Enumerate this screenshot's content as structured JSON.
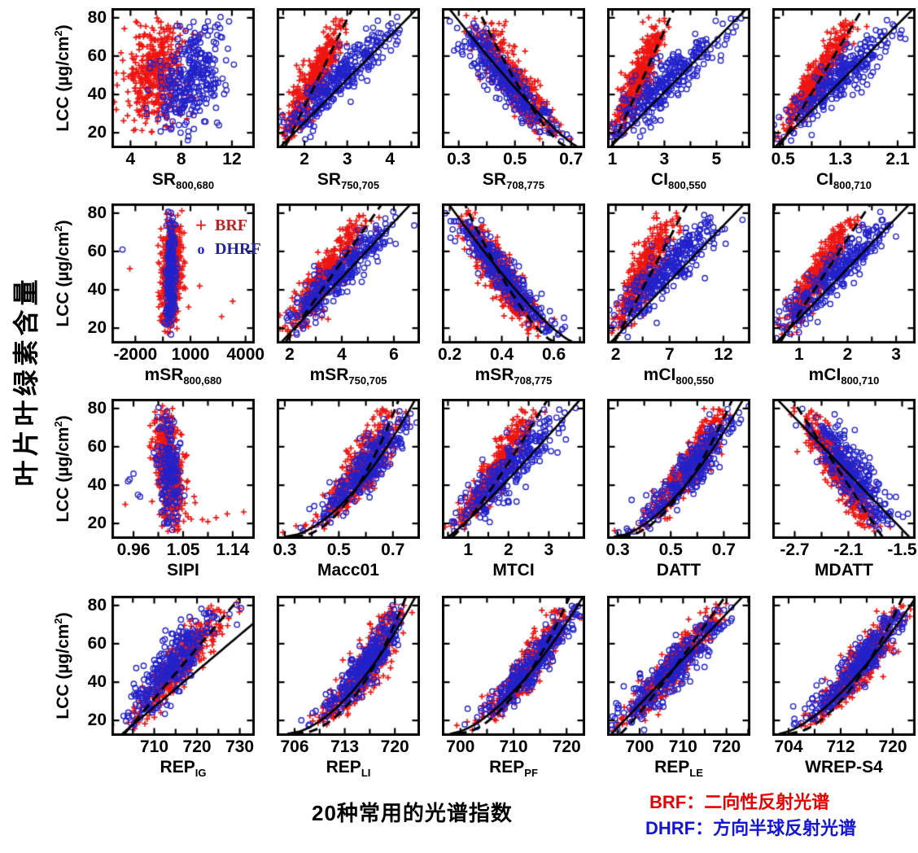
{
  "figure": {
    "left_axis_title": "叶片叶绿素含量",
    "bottom_caption": "20种常用的光谱指数",
    "footer_legend": [
      {
        "label": "BRF：",
        "text": "二向性反射光谱",
        "color": "#e60000"
      },
      {
        "label": "DHRF：",
        "text": "方向半球反射光谱",
        "color": "#1414d4"
      }
    ]
  },
  "chart_data": {
    "type": "scatter",
    "grid": {
      "rows": 4,
      "cols": 5
    },
    "ylabel": {
      "pre": "LCC (µg/cm",
      "sup": "2",
      "post": ")"
    },
    "yticks": [
      20,
      40,
      60,
      80
    ],
    "ylim": [
      12,
      85
    ],
    "series_styles": {
      "brf": {
        "name": "BRF",
        "marker": "+",
        "color": "#ee1511"
      },
      "dhrf": {
        "name": "DHRF",
        "marker": "o",
        "color": "#2222cc"
      }
    },
    "fit_styles": {
      "dashed_series": "BRF",
      "solid_series": "DHRF",
      "color": "#000000"
    },
    "inplot_legend": {
      "panel_index": 5,
      "entries": [
        {
          "marker": "+",
          "label": "BRF",
          "marker_color": "#ee1511",
          "label_color": "#bb2222"
        },
        {
          "marker": "o",
          "label": "DHRF",
          "marker_color": "#2222cc",
          "label_color": "#222299"
        }
      ]
    },
    "panels": [
      {
        "xlabel": {
          "base": "SR",
          "sub": "800,680"
        },
        "xlim": [
          2.5,
          13.8
        ],
        "xticks": [
          4,
          8,
          12
        ],
        "brf": {
          "x0": 5.7,
          "x1": 6.4,
          "p": 1,
          "s": 1.15,
          "n": 460,
          "ymin": 19
        },
        "dhrf": {
          "x0": 7.5,
          "x1": 9.8,
          "p": 1,
          "s": 1.3,
          "n": 300
        },
        "fits": []
      },
      {
        "xlabel": {
          "base": "SR",
          "sub": "750,705"
        },
        "xlim": [
          1.35,
          4.7
        ],
        "xticks": [
          2,
          3,
          4
        ],
        "brf": {
          "x0": 1.55,
          "x1": 2.95,
          "p": 1.05,
          "s": 0.16,
          "n": 440
        },
        "dhrf": {
          "x0": 1.5,
          "x1": 4.35,
          "p": 1.1,
          "s": 0.24,
          "n": 300
        },
        "fits": [
          {
            "style": "dashed",
            "x0": 1.55,
            "x1": 3.1,
            "p": 1
          },
          {
            "style": "solid",
            "x0": 1.45,
            "x1": 4.6,
            "p": 1
          }
        ]
      },
      {
        "xlabel": {
          "base": "SR",
          "sub": "708,775"
        },
        "xlim": [
          0.24,
          0.75
        ],
        "xticks": [
          0.3,
          0.5,
          0.7
        ],
        "brf": {
          "x0": 0.66,
          "x1": 0.37,
          "p": 0.8,
          "s": 0.035,
          "n": 440
        },
        "dhrf": {
          "x0": 0.68,
          "x1": 0.29,
          "p": 0.85,
          "s": 0.035,
          "n": 300
        },
        "fits": [
          {
            "style": "dashed",
            "x0": 0.68,
            "x1": 0.37,
            "p": 0.75
          },
          {
            "style": "solid",
            "x0": 0.72,
            "x1": 0.27,
            "p": 0.85
          }
        ]
      },
      {
        "xlabel": {
          "base": "CI",
          "sub": "800,550"
        },
        "xlim": [
          0.8,
          6.3
        ],
        "xticks": [
          1,
          3,
          5
        ],
        "brf": {
          "x0": 1.05,
          "x1": 3.0,
          "p": 1,
          "s": 0.24,
          "n": 440
        },
        "dhrf": {
          "x0": 1.0,
          "x1": 5.6,
          "p": 1.1,
          "s": 0.5,
          "n": 300
        },
        "fits": [
          {
            "style": "dashed",
            "x0": 1.0,
            "x1": 3.35,
            "p": 1
          },
          {
            "style": "solid",
            "x0": 0.95,
            "x1": 6.1,
            "p": 1
          }
        ]
      },
      {
        "xlabel": {
          "base": "CI",
          "sub": "800,710"
        },
        "xlim": [
          0.35,
          2.35
        ],
        "xticks": [
          0.5,
          1.3,
          2.1
        ],
        "brf": {
          "x0": 0.45,
          "x1": 1.5,
          "p": 1,
          "s": 0.09,
          "n": 440
        },
        "dhrf": {
          "x0": 0.43,
          "x1": 2.2,
          "p": 1.05,
          "s": 0.17,
          "n": 300
        },
        "fits": [
          {
            "style": "dashed",
            "x0": 0.45,
            "x1": 1.6,
            "p": 1
          },
          {
            "style": "solid",
            "x0": 0.4,
            "x1": 2.3,
            "p": 1
          }
        ]
      },
      {
        "xlabel": {
          "base": "mSR",
          "sub": "800,680"
        },
        "xlim": [
          -3300,
          4500
        ],
        "xticks": [
          -2000,
          1000,
          4000
        ],
        "brf": {
          "x0": -200,
          "x1": 100,
          "p": 1,
          "s": 260,
          "n": 520
        },
        "dhrf": {
          "x0": -150,
          "x1": 0,
          "p": 1,
          "s": 130,
          "n": 200
        },
        "out_brf": [
          [
            -2300,
            51
          ],
          [
            1500,
            42
          ],
          [
            3300,
            34
          ],
          [
            2700,
            26
          ],
          [
            900,
            31
          ],
          [
            700,
            54
          ]
        ],
        "out_dhrf": [
          [
            -2700,
            61
          ]
        ],
        "fits": []
      },
      {
        "xlabel": {
          "base": "mSR",
          "sub": "750,705"
        },
        "xlim": [
          1.5,
          7.0
        ],
        "xticks": [
          2,
          4,
          6
        ],
        "brf": {
          "x0": 1.85,
          "x1": 5.0,
          "p": 1,
          "s": 0.3,
          "n": 440
        },
        "dhrf": {
          "x0": 1.75,
          "x1": 6.3,
          "p": 1.05,
          "s": 0.42,
          "n": 300
        },
        "fits": [
          {
            "style": "dashed",
            "x0": 1.85,
            "x1": 5.5,
            "p": 1
          },
          {
            "style": "solid",
            "x0": 1.7,
            "x1": 6.6,
            "p": 1
          }
        ]
      },
      {
        "xlabel": {
          "base": "mSR",
          "sub": "708,775"
        },
        "xlim": [
          0.17,
          0.72
        ],
        "xticks": [
          0.2,
          0.4,
          0.6
        ],
        "brf": {
          "x0": 0.58,
          "x1": 0.26,
          "p": 0.78,
          "s": 0.035,
          "n": 440
        },
        "dhrf": {
          "x0": 0.64,
          "x1": 0.22,
          "p": 0.82,
          "s": 0.03,
          "n": 300
        },
        "fits": [
          {
            "style": "dashed",
            "x0": 0.6,
            "x1": 0.26,
            "p": 0.72
          },
          {
            "style": "solid",
            "x0": 0.67,
            "x1": 0.2,
            "p": 0.8
          }
        ]
      },
      {
        "xlabel": {
          "base": "mCI",
          "sub": "800,550"
        },
        "xlim": [
          1.2,
          14.5
        ],
        "xticks": [
          2,
          7,
          12
        ],
        "brf": {
          "x0": 1.9,
          "x1": 7.4,
          "p": 1.05,
          "s": 0.7,
          "n": 440
        },
        "dhrf": {
          "x0": 1.8,
          "x1": 12.0,
          "p": 1.15,
          "s": 1.1,
          "n": 300
        },
        "fits": [
          {
            "style": "dashed",
            "x0": 1.9,
            "x1": 8.6,
            "p": 1
          },
          {
            "style": "solid",
            "x0": 1.6,
            "x1": 13.8,
            "p": 1
          }
        ]
      },
      {
        "xlabel": {
          "base": "mCI",
          "sub": "800,710"
        },
        "xlim": [
          0.45,
          3.4
        ],
        "xticks": [
          1,
          2,
          3
        ],
        "brf": {
          "x0": 0.62,
          "x1": 2.15,
          "p": 1,
          "s": 0.13,
          "n": 440
        },
        "dhrf": {
          "x0": 0.6,
          "x1": 3.0,
          "p": 1.1,
          "s": 0.22,
          "n": 300
        },
        "fits": [
          {
            "style": "dashed",
            "x0": 0.62,
            "x1": 2.45,
            "p": 1
          },
          {
            "style": "solid",
            "x0": 0.55,
            "x1": 3.25,
            "p": 1
          }
        ]
      },
      {
        "xlabel": {
          "base": "SIPI",
          "sub": ""
        },
        "xlim": [
          0.92,
          1.18
        ],
        "xticks": [
          0.96,
          1.05,
          1.14
        ],
        "brf": {
          "x0": 1.035,
          "x1": 1.012,
          "p": 1,
          "s": 0.012,
          "n": 520
        },
        "dhrf": {
          "x0": 1.032,
          "x1": 1.02,
          "p": 1,
          "s": 0.011,
          "n": 160
        },
        "out_brf": [
          [
            0.945,
            30
          ],
          [
            1.07,
            34
          ],
          [
            1.085,
            22
          ],
          [
            1.095,
            21
          ],
          [
            1.11,
            23
          ],
          [
            1.13,
            25
          ],
          [
            1.16,
            26
          ]
        ],
        "out_dhrf": [
          [
            0.953,
            43
          ],
          [
            0.95,
            42
          ],
          [
            0.96,
            46
          ],
          [
            0.968,
            35
          ],
          [
            0.972,
            34
          ]
        ],
        "fits": []
      },
      {
        "xlabel": {
          "base": "Macc01",
          "sub": ""
        },
        "xlim": [
          0.27,
          0.8
        ],
        "xticks": [
          0.3,
          0.5,
          0.7
        ],
        "brf": {
          "x0": 0.33,
          "x1": 0.7,
          "p": 0.55,
          "s": 0.035,
          "n": 440
        },
        "dhrf": {
          "x0": 0.31,
          "x1": 0.76,
          "p": 0.62,
          "s": 0.035,
          "n": 300
        },
        "fits": [
          {
            "style": "dashed",
            "x0": 0.335,
            "x1": 0.72,
            "p": 0.5
          },
          {
            "style": "solid",
            "x0": 0.3,
            "x1": 0.78,
            "p": 0.58
          }
        ]
      },
      {
        "xlabel": {
          "base": "MTCI",
          "sub": ""
        },
        "xlim": [
          0.35,
          3.9
        ],
        "xticks": [
          1,
          2,
          3
        ],
        "brf": {
          "x0": 0.6,
          "x1": 2.6,
          "p": 0.85,
          "s": 0.17,
          "n": 440
        },
        "dhrf": {
          "x0": 0.55,
          "x1": 3.4,
          "p": 0.95,
          "s": 0.28,
          "n": 300
        },
        "fits": [
          {
            "style": "dashed",
            "x0": 0.6,
            "x1": 2.95,
            "p": 0.85
          },
          {
            "style": "solid",
            "x0": 0.5,
            "x1": 3.75,
            "p": 0.9
          }
        ]
      },
      {
        "xlabel": {
          "base": "DATT",
          "sub": ""
        },
        "xlim": [
          0.26,
          0.8
        ],
        "xticks": [
          0.3,
          0.5,
          0.7
        ],
        "brf": {
          "x0": 0.31,
          "x1": 0.7,
          "p": 0.6,
          "s": 0.03,
          "n": 440
        },
        "dhrf": {
          "x0": 0.3,
          "x1": 0.74,
          "p": 0.65,
          "s": 0.035,
          "n": 300
        },
        "fits": [
          {
            "style": "dashed",
            "x0": 0.315,
            "x1": 0.73,
            "p": 0.55
          },
          {
            "style": "solid",
            "x0": 0.285,
            "x1": 0.77,
            "p": 0.6
          }
        ]
      },
      {
        "xlabel": {
          "base": "MDATT",
          "sub": ""
        },
        "xlim": [
          -2.95,
          -1.35
        ],
        "xticks": [
          -2.7,
          -2.1,
          -1.5
        ],
        "brf": {
          "x0": -1.78,
          "x1": -2.62,
          "p": 1,
          "s": 0.09,
          "n": 440
        },
        "dhrf": {
          "x0": -1.62,
          "x1": -2.52,
          "p": 1,
          "s": 0.12,
          "n": 300
        },
        "fits": [
          {
            "style": "dashed",
            "x0": -1.72,
            "x1": -2.72,
            "p": 1
          },
          {
            "style": "solid",
            "x0": -1.42,
            "x1": -2.88,
            "p": 1
          }
        ]
      },
      {
        "xlabel": {
          "base": "REP",
          "sub": "IG"
        },
        "xlim": [
          700,
          733.5
        ],
        "xticks": [
          710,
          720,
          730
        ],
        "brf": {
          "x0": 703.5,
          "x1": 727,
          "p": 0.95,
          "s": 2.0,
          "n": 440
        },
        "dhrf": {
          "x0": 704,
          "x1": 724,
          "p": 1,
          "s": 3.0,
          "n": 300
        },
        "fits": [
          {
            "style": "dashed",
            "x0": 703,
            "x1": 730,
            "p": 1
          },
          {
            "style": "solid",
            "x0": 702.5,
            "x1": 735,
            "p": 1,
            "y1": 74
          }
        ]
      },
      {
        "xlabel": {
          "base": "REP",
          "sub": "LI"
        },
        "xlim": [
          703.5,
          723.5
        ],
        "xticks": [
          706,
          713,
          720
        ],
        "brf": {
          "x0": 705.5,
          "x1": 720.5,
          "p": 0.5,
          "s": 1.2,
          "n": 440
        },
        "dhrf": {
          "x0": 705,
          "x1": 721.5,
          "p": 0.58,
          "s": 1.2,
          "n": 300
        },
        "fits": [
          {
            "style": "dashed",
            "x0": 706,
            "x1": 721.5,
            "p": 0.48
          },
          {
            "style": "solid",
            "x0": 705,
            "x1": 722.8,
            "p": 0.58
          }
        ]
      },
      {
        "xlabel": {
          "base": "REP",
          "sub": "PF"
        },
        "xlim": [
          696.5,
          723.5
        ],
        "xticks": [
          700,
          710,
          720
        ],
        "brf": {
          "x0": 699,
          "x1": 720,
          "p": 0.58,
          "s": 1.5,
          "n": 440
        },
        "dhrf": {
          "x0": 698.5,
          "x1": 722,
          "p": 0.66,
          "s": 1.5,
          "n": 300
        },
        "fits": [
          {
            "style": "dashed",
            "x0": 699.5,
            "x1": 720.5,
            "p": 0.55
          },
          {
            "style": "solid",
            "x0": 698,
            "x1": 723,
            "p": 0.63
          }
        ]
      },
      {
        "xlabel": {
          "base": "REP",
          "sub": "LE"
        },
        "xlim": [
          692.5,
          725.5
        ],
        "xticks": [
          700,
          710,
          720
        ],
        "brf": {
          "x0": 695,
          "x1": 719,
          "p": 0.9,
          "s": 2.0,
          "n": 440
        },
        "dhrf": {
          "x0": 694.5,
          "x1": 721,
          "p": 1,
          "s": 2.6,
          "n": 300
        },
        "fits": [
          {
            "style": "dashed",
            "x0": 695.5,
            "x1": 719.5,
            "p": 0.9
          },
          {
            "style": "solid",
            "x0": 693.5,
            "x1": 723.5,
            "p": 1
          }
        ]
      },
      {
        "xlabel": {
          "base": "WREP-S4",
          "sub": ""
        },
        "xlim": [
          701.5,
          723.5
        ],
        "xticks": [
          704,
          712,
          720
        ],
        "brf": {
          "x0": 703.5,
          "x1": 721,
          "p": 0.58,
          "s": 1.3,
          "n": 440
        },
        "dhrf": {
          "x0": 703,
          "x1": 722,
          "p": 0.68,
          "s": 1.3,
          "n": 300
        },
        "fits": [
          {
            "style": "dashed",
            "x0": 704,
            "x1": 721.5,
            "p": 0.55
          },
          {
            "style": "solid",
            "x0": 702.5,
            "x1": 723.5,
            "p": 0.66
          }
        ]
      }
    ]
  }
}
